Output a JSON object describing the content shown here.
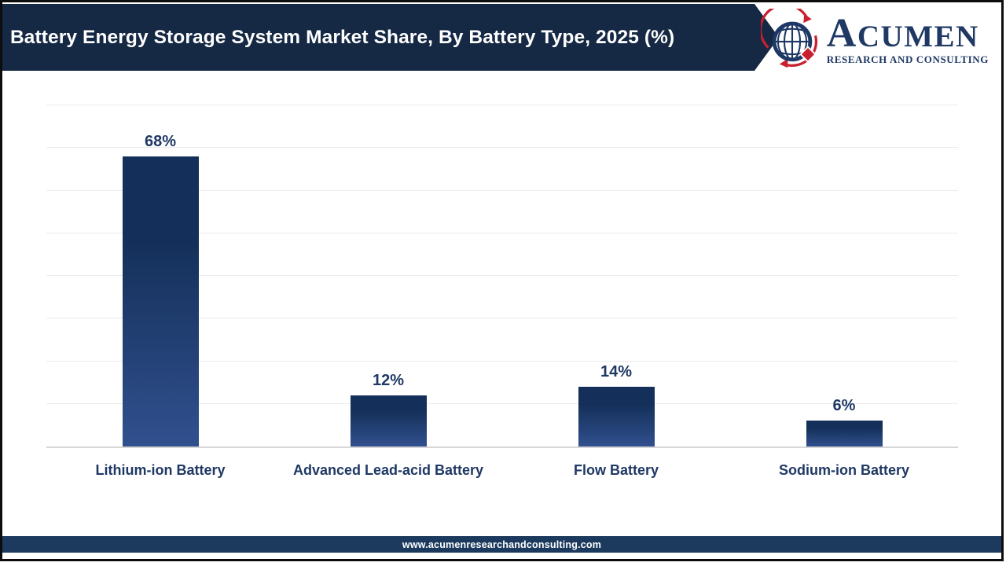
{
  "header": {
    "title": "Battery Energy Storage System Market Share, By Battery Type, 2025 (%)"
  },
  "logo": {
    "name": "ACUMEN",
    "tagline": "RESEARCH AND CONSULTING",
    "icon": "globe-icon",
    "colors": {
      "navy": "#1f3864",
      "red": "#c8202f"
    }
  },
  "footer": {
    "url": "www.acumenresearchandconsulting.com"
  },
  "chart_data": {
    "type": "bar",
    "title": "Battery Energy Storage System Market Share, By Battery Type, 2025 (%)",
    "categories": [
      "Lithium-ion Battery",
      "Advanced Lead-acid Battery",
      "Flow Battery",
      "Sodium-ion Battery"
    ],
    "values": [
      68,
      12,
      14,
      6
    ],
    "value_labels": [
      "68%",
      "12%",
      "14%",
      "6%"
    ],
    "unit": "%",
    "xlabel": "",
    "ylabel": "",
    "ylim": [
      0,
      80
    ],
    "grid_step": 10,
    "grid": "horizontal",
    "legend_position": "none",
    "y_axis_ticks_visible": false,
    "style": {
      "bar_color_top": "#14305a",
      "bar_color_bottom": "#31508e",
      "data_label_color": "#1f3864",
      "category_label_color": "#1f3864",
      "gridline_color": "#ebebeb",
      "axis_line_color": "#d6d6d6",
      "header_bg": "#152844",
      "footer_bg": "#1c3a5e"
    }
  }
}
